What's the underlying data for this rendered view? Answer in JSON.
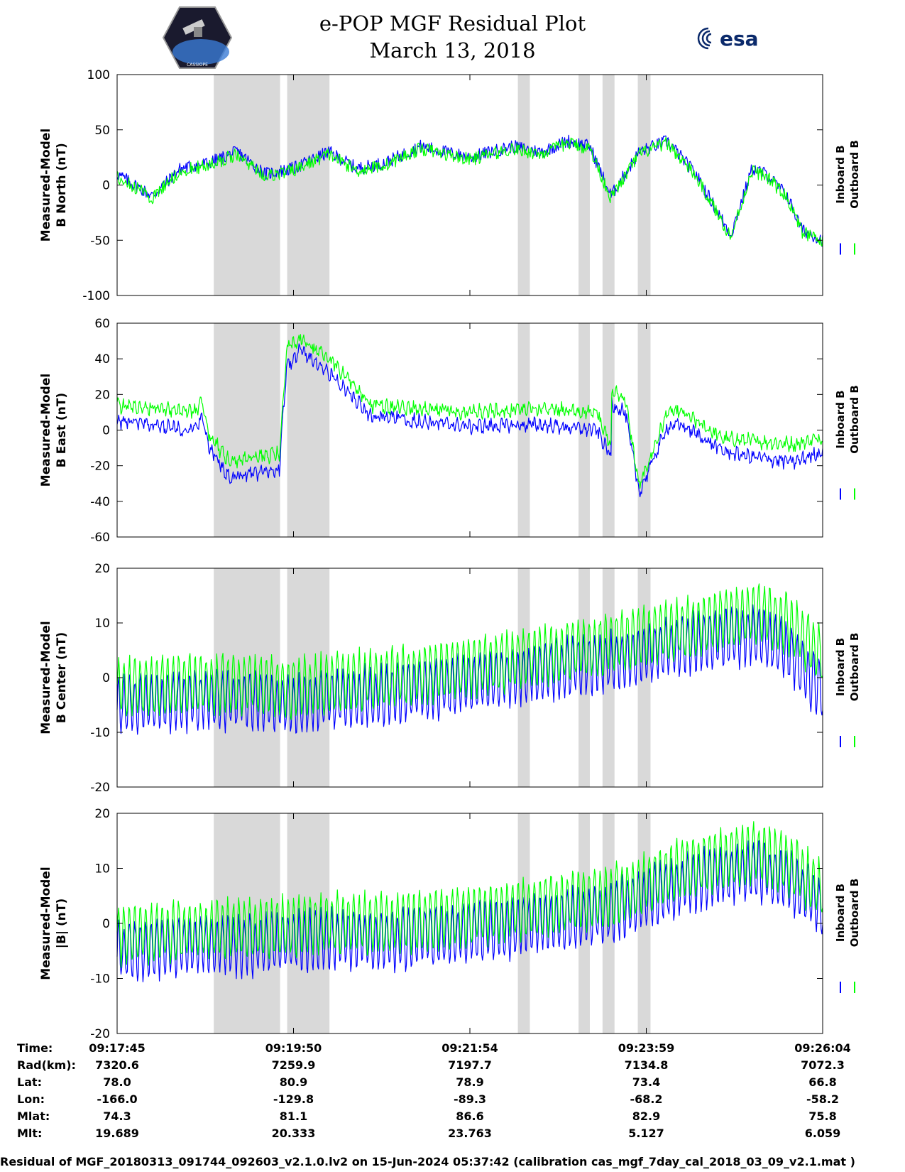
{
  "header": {
    "title": "e-POP MGF Residual Plot",
    "date": "March 13, 2018",
    "left_logo": {
      "text": "CASSIOPE",
      "icon": "satellite-mission-logo-icon"
    },
    "right_logo": {
      "text": "esa",
      "icon": "esa-logo-icon"
    }
  },
  "chart_data": [
    {
      "type": "line",
      "ylabel_line1": "Measured-Model",
      "ylabel_line2": "B North (nT)",
      "ylim": [
        -100,
        100
      ],
      "yticks": [
        "100",
        "50",
        "0",
        "-50",
        "-100"
      ],
      "yticks_values": [
        100,
        50,
        0,
        -50,
        -100
      ],
      "legend": [
        "Inboard B",
        "Outboard B"
      ],
      "series": [
        {
          "name": "Inboard B",
          "color": "#0000ff",
          "x": [
            0,
            0.05,
            0.09,
            0.13,
            0.17,
            0.21,
            0.25,
            0.3,
            0.34,
            0.38,
            0.43,
            0.5,
            0.56,
            0.6,
            0.64,
            0.67,
            0.7,
            0.74,
            0.78,
            0.82,
            0.87,
            0.9,
            0.92,
            0.95,
            0.97,
            1.0
          ],
          "y": [
            10,
            -10,
            15,
            20,
            30,
            10,
            15,
            30,
            15,
            20,
            35,
            25,
            35,
            30,
            40,
            35,
            -10,
            30,
            40,
            10,
            -45,
            15,
            10,
            -10,
            -40,
            -50
          ],
          "noise": 6,
          "osc_amp": 0
        },
        {
          "name": "Outboard B",
          "color": "#00ff00",
          "x": [
            0,
            0.05,
            0.09,
            0.13,
            0.17,
            0.21,
            0.25,
            0.3,
            0.34,
            0.38,
            0.43,
            0.5,
            0.56,
            0.6,
            0.64,
            0.67,
            0.7,
            0.74,
            0.78,
            0.82,
            0.87,
            0.9,
            0.92,
            0.95,
            0.97,
            1.0
          ],
          "y": [
            8,
            -12,
            13,
            18,
            28,
            8,
            13,
            28,
            13,
            18,
            33,
            23,
            33,
            28,
            38,
            33,
            -12,
            28,
            38,
            8,
            -47,
            13,
            8,
            -12,
            -42,
            -52
          ],
          "noise": 6,
          "osc_amp": 0
        }
      ]
    },
    {
      "type": "line",
      "ylabel_line1": "Measured-Model",
      "ylabel_line2": "B East (nT)",
      "ylim": [
        -60,
        60
      ],
      "yticks": [
        "60",
        "40",
        "20",
        "0",
        "-20",
        "-40",
        "-60"
      ],
      "yticks_values": [
        60,
        40,
        20,
        0,
        -20,
        -40,
        -60
      ],
      "legend": [
        "Inboard B",
        "Outboard B"
      ],
      "series": [
        {
          "name": "Inboard B",
          "color": "#0000ff",
          "x": [
            0,
            0.11,
            0.12,
            0.13,
            0.16,
            0.23,
            0.24,
            0.26,
            0.3,
            0.36,
            0.5,
            0.6,
            0.68,
            0.7,
            0.69,
            0.7,
            0.72,
            0.74,
            0.78,
            0.8,
            0.86,
            0.9,
            0.96,
            1.0
          ],
          "y": [
            5,
            0,
            8,
            -10,
            -27,
            -22,
            35,
            45,
            32,
            8,
            2,
            3,
            0,
            -15,
            -15,
            15,
            10,
            -35,
            2,
            3,
            -12,
            -15,
            -18,
            -12
          ],
          "noise": 3,
          "osc_amp": 2
        },
        {
          "name": "Outboard B",
          "color": "#00ff00",
          "x": [
            0,
            0.11,
            0.12,
            0.13,
            0.16,
            0.23,
            0.24,
            0.26,
            0.3,
            0.36,
            0.5,
            0.6,
            0.68,
            0.7,
            0.69,
            0.7,
            0.72,
            0.74,
            0.78,
            0.8,
            0.86,
            0.9,
            0.96,
            1.0
          ],
          "y": [
            14,
            10,
            15,
            -3,
            -18,
            -13,
            45,
            52,
            40,
            14,
            10,
            12,
            10,
            -10,
            -10,
            22,
            18,
            -32,
            10,
            10,
            -5,
            -6,
            -8,
            -4
          ],
          "noise": 3,
          "osc_amp": 2
        }
      ]
    },
    {
      "type": "line",
      "ylabel_line1": "Measured-Model",
      "ylabel_line2": "B Center (nT)",
      "ylim": [
        -20,
        20
      ],
      "yticks": [
        "20",
        "10",
        "0",
        "-10",
        "-20"
      ],
      "yticks_values": [
        20,
        10,
        0,
        -10,
        -20
      ],
      "legend": [
        "Inboard B",
        "Outboard B"
      ],
      "series": [
        {
          "name": "Inboard B",
          "color": "#0000ff",
          "x": [
            0,
            0.13,
            0.2,
            0.25,
            0.3,
            0.4,
            0.55,
            0.7,
            0.8,
            0.9,
            0.95,
            1.0
          ],
          "y": [
            -5,
            -4,
            -4,
            -5,
            -4,
            -3,
            0,
            3,
            6,
            8,
            5,
            -3
          ],
          "noise": 1.2,
          "osc_amp": 5
        },
        {
          "name": "Outboard B",
          "color": "#00ff00",
          "x": [
            0,
            0.13,
            0.2,
            0.25,
            0.3,
            0.4,
            0.55,
            0.7,
            0.8,
            0.9,
            0.95,
            1.0
          ],
          "y": [
            -2,
            -1,
            -1,
            -2,
            -1,
            0,
            3,
            6,
            9,
            12,
            10,
            4
          ],
          "noise": 1.2,
          "osc_amp": 5
        }
      ]
    },
    {
      "type": "line",
      "ylabel_line1": "Measured-Model",
      "ylabel_line2": "|B| (nT)",
      "ylim": [
        -20,
        20
      ],
      "yticks": [
        "20",
        "10",
        "0",
        "-10",
        "-20"
      ],
      "yticks_values": [
        20,
        10,
        0,
        -10,
        -20
      ],
      "legend": [
        "Inboard B",
        "Outboard B"
      ],
      "series": [
        {
          "name": "Inboard B",
          "color": "#0000ff",
          "x": [
            0,
            0.13,
            0.2,
            0.3,
            0.4,
            0.55,
            0.7,
            0.8,
            0.9,
            0.95,
            1.0
          ],
          "y": [
            -5,
            -4,
            -4,
            -3,
            -3,
            -1,
            2,
            7,
            10,
            8,
            3
          ],
          "noise": 1.2,
          "osc_amp": 5
        },
        {
          "name": "Outboard B",
          "color": "#00ff00",
          "x": [
            0,
            0.13,
            0.2,
            0.3,
            0.4,
            0.55,
            0.7,
            0.8,
            0.9,
            0.95,
            1.0
          ],
          "y": [
            -2,
            -1,
            -1,
            0,
            0,
            2,
            5,
            10,
            13,
            11,
            6
          ],
          "noise": 1.2,
          "osc_amp": 5
        }
      ]
    }
  ],
  "shaded_intervals": [
    [
      0.137,
      0.231
    ],
    [
      0.241,
      0.301
    ],
    [
      0.568,
      0.585
    ],
    [
      0.654,
      0.67
    ],
    [
      0.688,
      0.705
    ],
    [
      0.738,
      0.756
    ]
  ],
  "x_ticks": [
    "09:17:45",
    "09:19:50",
    "09:21:54",
    "09:23:59",
    "09:26:04"
  ],
  "info": {
    "rows": [
      {
        "label": "Time:",
        "values": [
          "09:17:45",
          "09:19:50",
          "09:21:54",
          "09:23:59",
          "09:26:04"
        ]
      },
      {
        "label": "Rad(km):",
        "values": [
          "7320.6",
          "7259.9",
          "7197.7",
          "7134.8",
          "7072.3"
        ]
      },
      {
        "label": "Lat:",
        "values": [
          "78.0",
          "80.9",
          "78.9",
          "73.4",
          "66.8"
        ]
      },
      {
        "label": "Lon:",
        "values": [
          "-166.0",
          "-129.8",
          "-89.3",
          "-68.2",
          "-58.2"
        ]
      },
      {
        "label": "Mlat:",
        "values": [
          "74.3",
          "81.1",
          "86.6",
          "82.9",
          "75.8"
        ]
      },
      {
        "label": "Mlt:",
        "values": [
          "19.689",
          "20.333",
          "23.763",
          "5.127",
          "6.059"
        ]
      }
    ]
  },
  "footer": "Residual of MGF_20180313_091744_092603_v2.1.0.lv2 on 15-Jun-2024 05:37:42 (calibration cas_mgf_7day_cal_2018_03_09_v2.1.mat )"
}
